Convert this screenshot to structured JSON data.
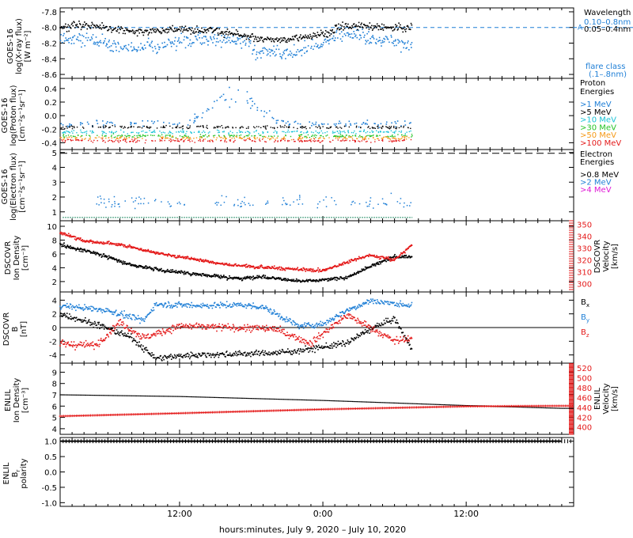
{
  "colors": {
    "black": "#000000",
    "blue": "#1f7fd6",
    "cyan": "#19c3d6",
    "green": "#26c426",
    "orange": "#f59a16",
    "red": "#e41a1a",
    "magenta": "#e01bd6",
    "frame": "#000000"
  },
  "xaxis": {
    "label": "hours:minutes, July  9, 2020 – July 10, 2020",
    "ticks": [
      "12:00",
      "0:00",
      "12:00"
    ],
    "tick_hours": [
      12,
      24,
      36
    ]
  },
  "chart_data": [
    {
      "id": "xray",
      "type": "scatter",
      "ylabel": [
        "GOES-16",
        "log(X-ray flux)",
        "[W m⁻²]"
      ],
      "ylim": [
        -8.65,
        -7.75
      ],
      "ytick_labels": [
        "-7.8",
        "-8.0",
        "-8.2",
        "-8.4",
        "-8.6"
      ],
      "ytick_values": [
        -7.8,
        -8.0,
        -8.2,
        -8.4,
        -8.6
      ],
      "legend_title": "Wavelength",
      "series": [
        {
          "name": "0.10–0.8nm",
          "color": "blue",
          "value_range": [
            -8.5,
            -7.9
          ],
          "baseline": -8.2
        },
        {
          "name": "0.05–0.4nm",
          "color": "black",
          "value_range": [
            -8.2,
            -7.9
          ],
          "baseline": -8.05
        }
      ],
      "flare_class_label": "flare class",
      "flare_class_sub": "(.1–.8nm)",
      "flare_reference": -8.0,
      "flare_marker": "A"
    },
    {
      "id": "proton",
      "type": "scatter",
      "ylabel": [
        "GOES-16",
        "log(Proton flux)",
        "[cm⁻²s⁻¹sr⁻¹]"
      ],
      "ylim": [
        -0.5,
        0.55
      ],
      "ytick_labels": [
        "0.4",
        "0.2",
        "0.0",
        "-0.2",
        "-0.4"
      ],
      "ytick_values": [
        0.4,
        0.2,
        0.0,
        -0.2,
        -0.4
      ],
      "legend_title": [
        "Proton",
        "Energies"
      ],
      "series": [
        {
          "name": ">1 MeV",
          "color": "blue"
        },
        {
          "name": ">5 MeV",
          "color": "black"
        },
        {
          "name": ">10 MeV",
          "color": "cyan"
        },
        {
          "name": ">30 MeV",
          "color": "green"
        },
        {
          "name": ">50 MeV",
          "color": "orange"
        },
        {
          "name": ">100 MeV",
          "color": "red"
        }
      ]
    },
    {
      "id": "electron",
      "type": "scatter",
      "ylabel": [
        "GOES-16",
        "log(Electron flux)",
        "[cm⁻²s⁻¹sr⁻¹]"
      ],
      "ylim": [
        0.4,
        5.2
      ],
      "ytick_labels": [
        "5",
        "4",
        "3",
        "2",
        "1"
      ],
      "ytick_values": [
        5,
        4,
        3,
        2,
        1
      ],
      "legend_title": [
        "Electron",
        "Energies"
      ],
      "series": [
        {
          "name": ">0.8 MeV",
          "color": "black"
        },
        {
          "name": ">2 MeV",
          "color": "blue"
        },
        {
          "name": ">4 MeV",
          "color": "magenta"
        }
      ],
      "dashed_reference": 4.95
    },
    {
      "id": "dscovr_density",
      "type": "scatter",
      "ylabel": [
        "DSCOVR",
        "Ion Density",
        "[cm⁻³]"
      ],
      "ylim": [
        0.5,
        10.8
      ],
      "ytick_labels": [
        "10",
        "8",
        "6",
        "4",
        "2"
      ],
      "ytick_values": [
        10,
        8,
        6,
        4,
        2
      ],
      "right_ylabel": [
        "DSCOVR",
        "Velocity",
        "[km/s]"
      ],
      "right_ylim": [
        293,
        353
      ],
      "right_tick_labels": [
        "350",
        "340",
        "330",
        "320",
        "310",
        "300"
      ],
      "right_tick_values": [
        350,
        340,
        330,
        320,
        310,
        300
      ],
      "series": [
        {
          "name": "Ion Density",
          "color": "black"
        },
        {
          "name": "Velocity",
          "color": "red"
        }
      ]
    },
    {
      "id": "dscovr_b",
      "type": "scatter",
      "ylabel": [
        "DSCOVR",
        "B",
        "[nT]"
      ],
      "ylim": [
        -5.2,
        5.2
      ],
      "ytick_labels": [
        "4",
        "2",
        "0",
        "-2",
        "-4"
      ],
      "ytick_values": [
        4,
        2,
        0,
        -2,
        -4
      ],
      "series": [
        {
          "name": "B",
          "sub": "x",
          "color": "black"
        },
        {
          "name": "B",
          "sub": "y",
          "color": "blue"
        },
        {
          "name": "B",
          "sub": "z",
          "color": "red"
        }
      ]
    },
    {
      "id": "enlil_density",
      "type": "line",
      "ylabel": [
        "ENLIL",
        "Ion Density",
        "[cm⁻³]"
      ],
      "ylim": [
        3.5,
        9.8
      ],
      "ytick_labels": [
        "9",
        "8",
        "7",
        "6",
        "5",
        "4"
      ],
      "ytick_values": [
        9,
        8,
        7,
        6,
        5,
        4
      ],
      "right_ylabel": [
        "ENLIL",
        "Velocity",
        "[km/s]"
      ],
      "right_ylim": [
        385,
        530
      ],
      "right_tick_labels": [
        "520",
        "500",
        "480",
        "460",
        "440",
        "420",
        "400"
      ],
      "right_tick_values": [
        520,
        500,
        480,
        460,
        440,
        420,
        400
      ],
      "series": [
        {
          "name": "Ion Density",
          "color": "black",
          "x_hours": [
            2,
            12,
            24,
            36,
            44
          ],
          "y": [
            7.0,
            6.85,
            6.5,
            6.05,
            5.8
          ]
        },
        {
          "name": "Velocity",
          "color": "red",
          "x_hours": [
            2,
            12,
            24,
            36,
            44
          ],
          "y": [
            422,
            428,
            436,
            442,
            443
          ]
        }
      ]
    },
    {
      "id": "enlil_polarity",
      "type": "line",
      "ylabel": [
        "ENLIL",
        "B",
        "polarity"
      ],
      "ylabel_sub": "r",
      "ylim": [
        -1.12,
        1.12
      ],
      "ytick_labels": [
        "1.0",
        "0.5",
        "0.0",
        "-0.5",
        "-1.0"
      ],
      "ytick_values": [
        1.0,
        0.5,
        0.0,
        -0.5,
        -1.0
      ],
      "series": [
        {
          "name": "polarity",
          "color": "black",
          "x_hours": [
            2,
            44
          ],
          "y": [
            1.0,
            1.0
          ]
        }
      ]
    }
  ]
}
